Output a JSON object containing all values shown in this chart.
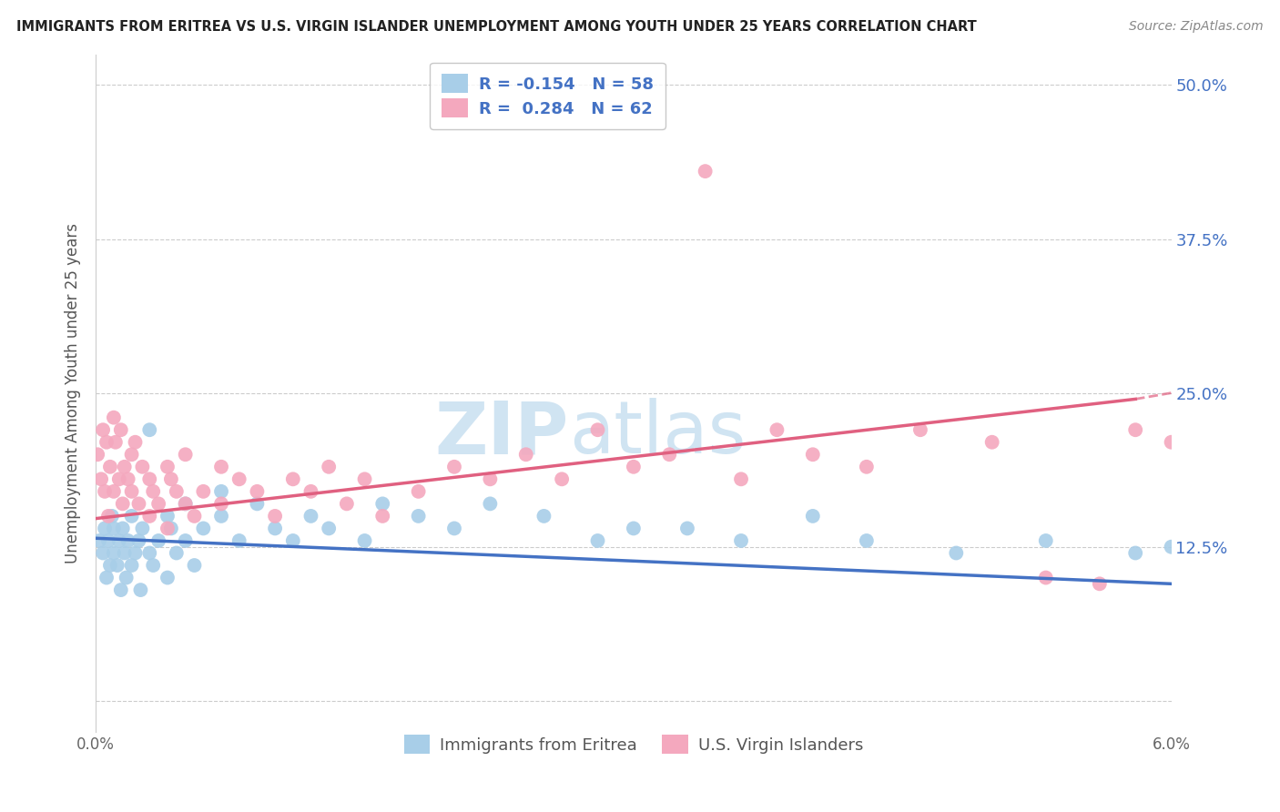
{
  "title": "IMMIGRANTS FROM ERITREA VS U.S. VIRGIN ISLANDER UNEMPLOYMENT AMONG YOUTH UNDER 25 YEARS CORRELATION CHART",
  "source": "Source: ZipAtlas.com",
  "ylabel": "Unemployment Among Youth under 25 years",
  "legend_label1": "Immigrants from Eritrea",
  "legend_label2": "U.S. Virgin Islanders",
  "R1": -0.154,
  "N1": 58,
  "R2": 0.284,
  "N2": 62,
  "color_blue": "#A8CEE8",
  "color_pink": "#F4A8BE",
  "color_blue_line": "#4472C4",
  "color_pink_line": "#E06080",
  "color_text_blue": "#4472C4",
  "watermark_color": "#D0E4F2",
  "xlim": [
    0.0,
    0.06
  ],
  "ylim": [
    -0.025,
    0.525
  ],
  "ytick_vals": [
    0.0,
    0.125,
    0.25,
    0.375,
    0.5
  ],
  "ytick_labels": [
    "",
    "12.5%",
    "25.0%",
    "37.5%",
    "50.0%"
  ],
  "blue_x": [
    0.0002,
    0.0004,
    0.0005,
    0.0006,
    0.0007,
    0.0008,
    0.0009,
    0.001,
    0.001,
    0.0012,
    0.0013,
    0.0014,
    0.0015,
    0.0016,
    0.0017,
    0.0018,
    0.002,
    0.002,
    0.0022,
    0.0024,
    0.0025,
    0.0026,
    0.003,
    0.003,
    0.0032,
    0.0035,
    0.004,
    0.004,
    0.0042,
    0.0045,
    0.005,
    0.005,
    0.0055,
    0.006,
    0.007,
    0.007,
    0.008,
    0.009,
    0.01,
    0.011,
    0.012,
    0.013,
    0.015,
    0.016,
    0.018,
    0.02,
    0.022,
    0.025,
    0.028,
    0.03,
    0.033,
    0.036,
    0.04,
    0.043,
    0.048,
    0.053,
    0.058,
    0.06
  ],
  "blue_y": [
    0.13,
    0.12,
    0.14,
    0.1,
    0.13,
    0.11,
    0.15,
    0.12,
    0.14,
    0.11,
    0.13,
    0.09,
    0.14,
    0.12,
    0.1,
    0.13,
    0.11,
    0.15,
    0.12,
    0.13,
    0.09,
    0.14,
    0.12,
    0.22,
    0.11,
    0.13,
    0.15,
    0.1,
    0.14,
    0.12,
    0.13,
    0.16,
    0.11,
    0.14,
    0.15,
    0.17,
    0.13,
    0.16,
    0.14,
    0.13,
    0.15,
    0.14,
    0.13,
    0.16,
    0.15,
    0.14,
    0.16,
    0.15,
    0.13,
    0.14,
    0.14,
    0.13,
    0.15,
    0.13,
    0.12,
    0.13,
    0.12,
    0.125
  ],
  "pink_x": [
    0.0001,
    0.0003,
    0.0004,
    0.0005,
    0.0006,
    0.0007,
    0.0008,
    0.001,
    0.001,
    0.0011,
    0.0013,
    0.0014,
    0.0015,
    0.0016,
    0.0018,
    0.002,
    0.002,
    0.0022,
    0.0024,
    0.0026,
    0.003,
    0.003,
    0.0032,
    0.0035,
    0.004,
    0.004,
    0.0042,
    0.0045,
    0.005,
    0.005,
    0.0055,
    0.006,
    0.007,
    0.007,
    0.008,
    0.009,
    0.01,
    0.011,
    0.012,
    0.013,
    0.014,
    0.015,
    0.016,
    0.018,
    0.02,
    0.022,
    0.024,
    0.026,
    0.028,
    0.03,
    0.032,
    0.034,
    0.036,
    0.038,
    0.04,
    0.043,
    0.046,
    0.05,
    0.053,
    0.056,
    0.058,
    0.06
  ],
  "pink_y": [
    0.2,
    0.18,
    0.22,
    0.17,
    0.21,
    0.15,
    0.19,
    0.23,
    0.17,
    0.21,
    0.18,
    0.22,
    0.16,
    0.19,
    0.18,
    0.17,
    0.2,
    0.21,
    0.16,
    0.19,
    0.18,
    0.15,
    0.17,
    0.16,
    0.19,
    0.14,
    0.18,
    0.17,
    0.16,
    0.2,
    0.15,
    0.17,
    0.16,
    0.19,
    0.18,
    0.17,
    0.15,
    0.18,
    0.17,
    0.19,
    0.16,
    0.18,
    0.15,
    0.17,
    0.19,
    0.18,
    0.2,
    0.18,
    0.22,
    0.19,
    0.2,
    0.43,
    0.18,
    0.22,
    0.2,
    0.19,
    0.22,
    0.21,
    0.1,
    0.095,
    0.22,
    0.21
  ],
  "blue_trend_x": [
    0.0,
    0.06
  ],
  "blue_trend_y": [
    0.132,
    0.095
  ],
  "pink_trend_x": [
    0.0,
    0.058
  ],
  "pink_trend_y": [
    0.148,
    0.245
  ]
}
